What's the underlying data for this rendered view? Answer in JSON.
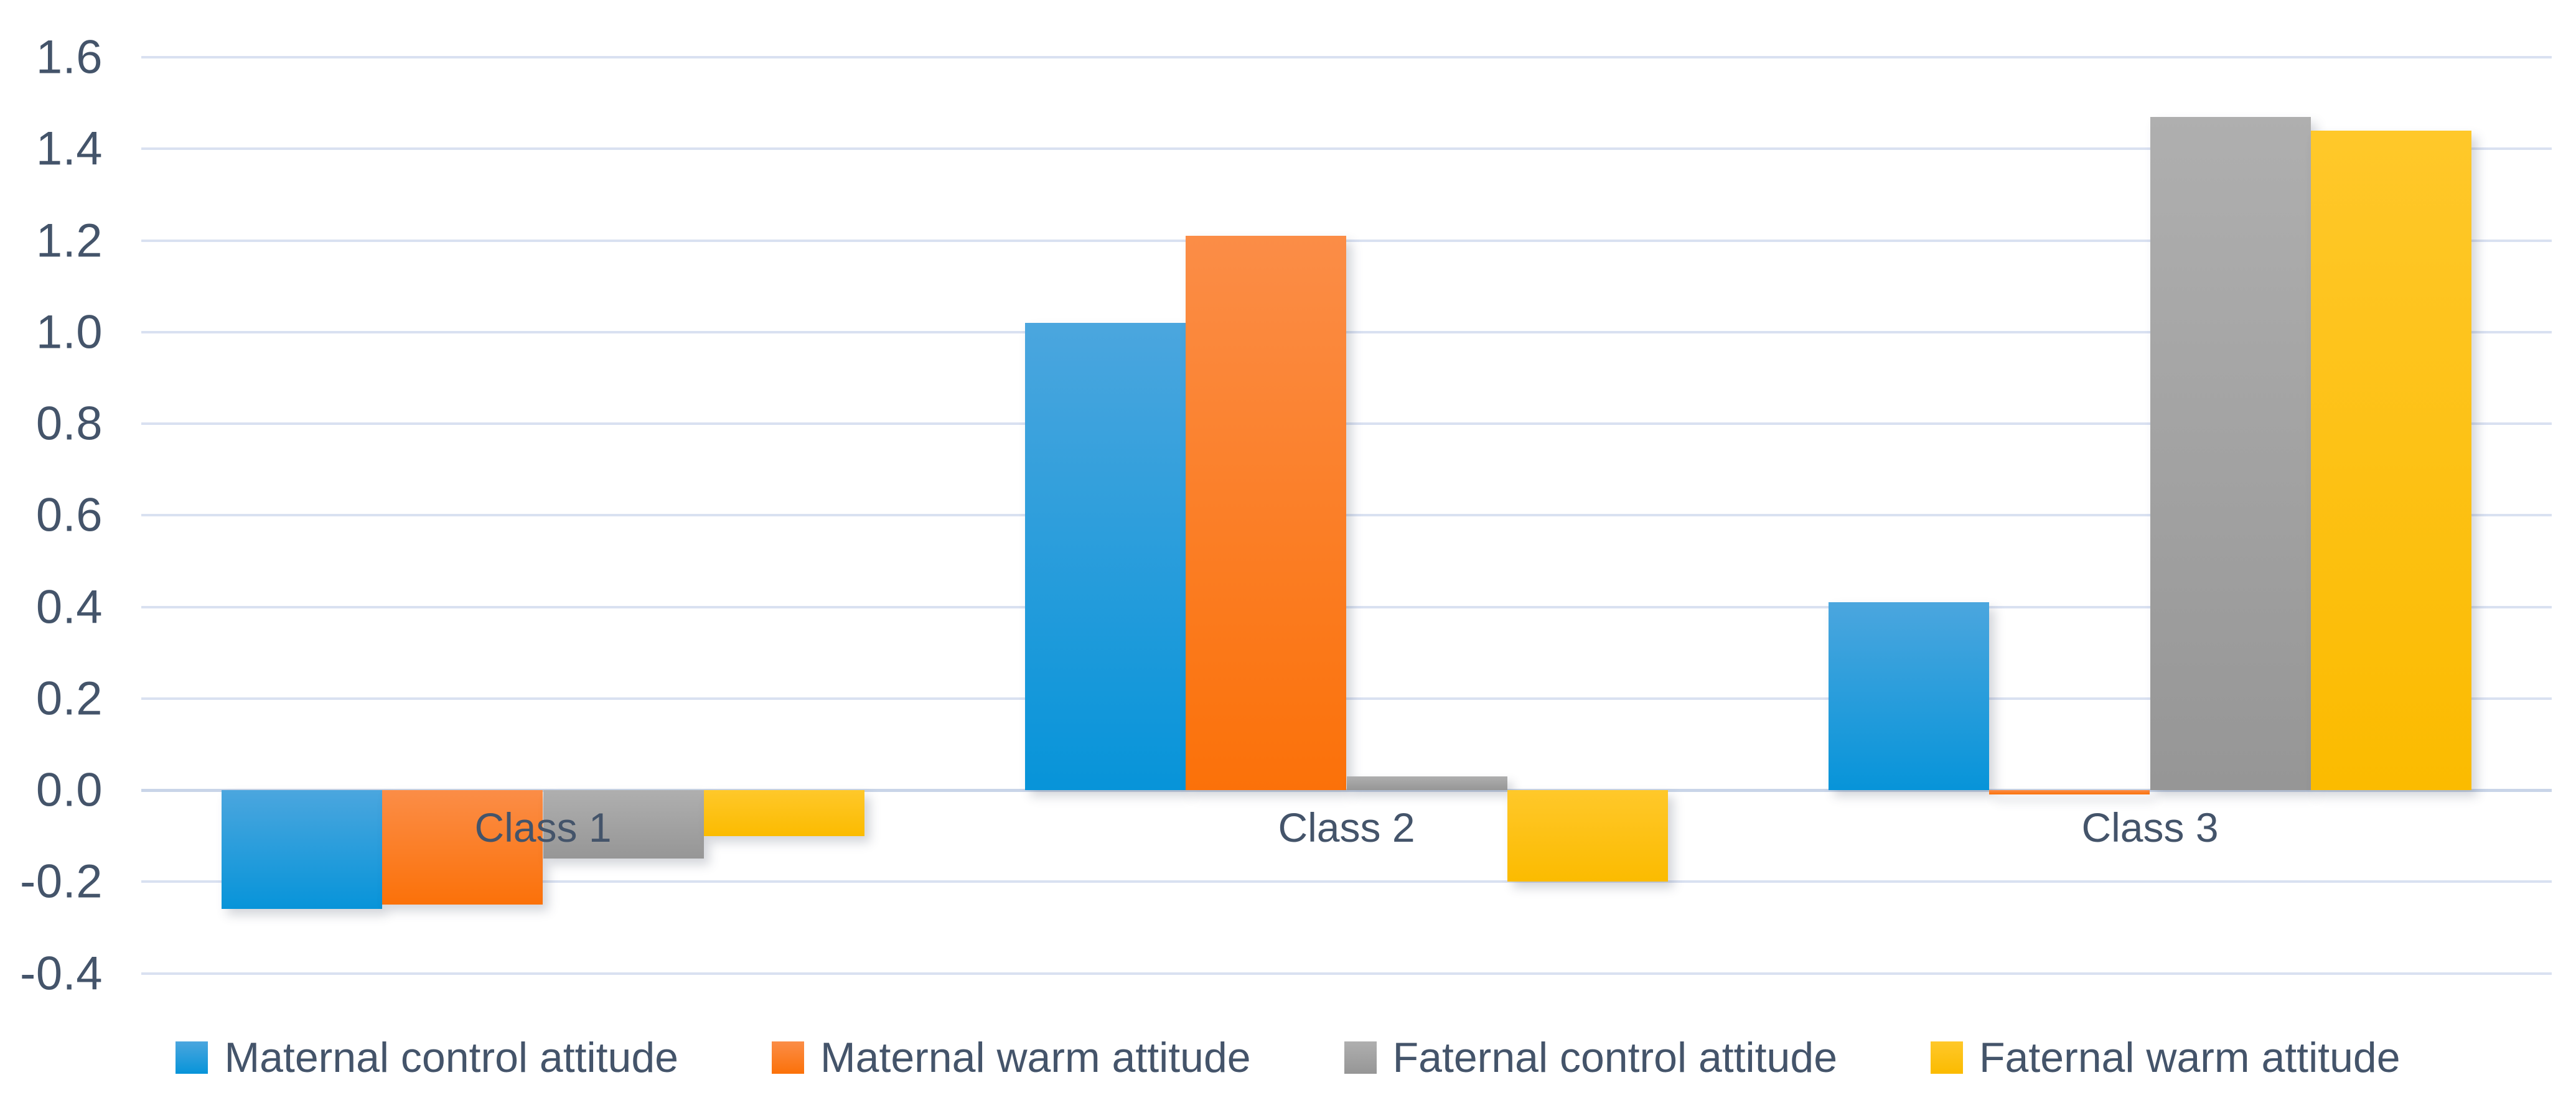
{
  "chart_data": {
    "type": "bar",
    "title": "",
    "xlabel": "",
    "ylabel": "",
    "categories": [
      "Class 1",
      "Class 2",
      "Class 3"
    ],
    "series": [
      {
        "name": "Maternal control attitude",
        "values": [
          -0.26,
          1.02,
          0.41
        ],
        "color_top": "#4BA6DE",
        "color_bottom": "#0794D9"
      },
      {
        "name": "Maternal warm attitude",
        "values": [
          -0.25,
          1.21,
          -0.01
        ],
        "color_top": "#FB8D47",
        "color_bottom": "#FB7109"
      },
      {
        "name": "Faternal control attitude",
        "values": [
          -0.15,
          0.03,
          1.47
        ],
        "color_top": "#AFAFAF",
        "color_bottom": "#969696"
      },
      {
        "name": "Faternal warm attitude",
        "values": [
          -0.1,
          -0.2,
          1.44
        ],
        "color_top": "#FFC82A",
        "color_bottom": "#FBBB00"
      }
    ],
    "ylim": [
      -0.4,
      1.6
    ],
    "ytick_step": 0.2,
    "ytick_labels": [
      "1.6",
      "1.4",
      "1.2",
      "1.0",
      "0.8",
      "0.6",
      "0.4",
      "0.2",
      "0.0",
      "-0.2",
      "-0.4"
    ],
    "grid": true,
    "legend_position": "bottom"
  },
  "colors": {
    "text": "#44546A",
    "gridline": "#D9E1F1",
    "zero_line": "#C9D5E8",
    "background": "#FFFFFF"
  }
}
